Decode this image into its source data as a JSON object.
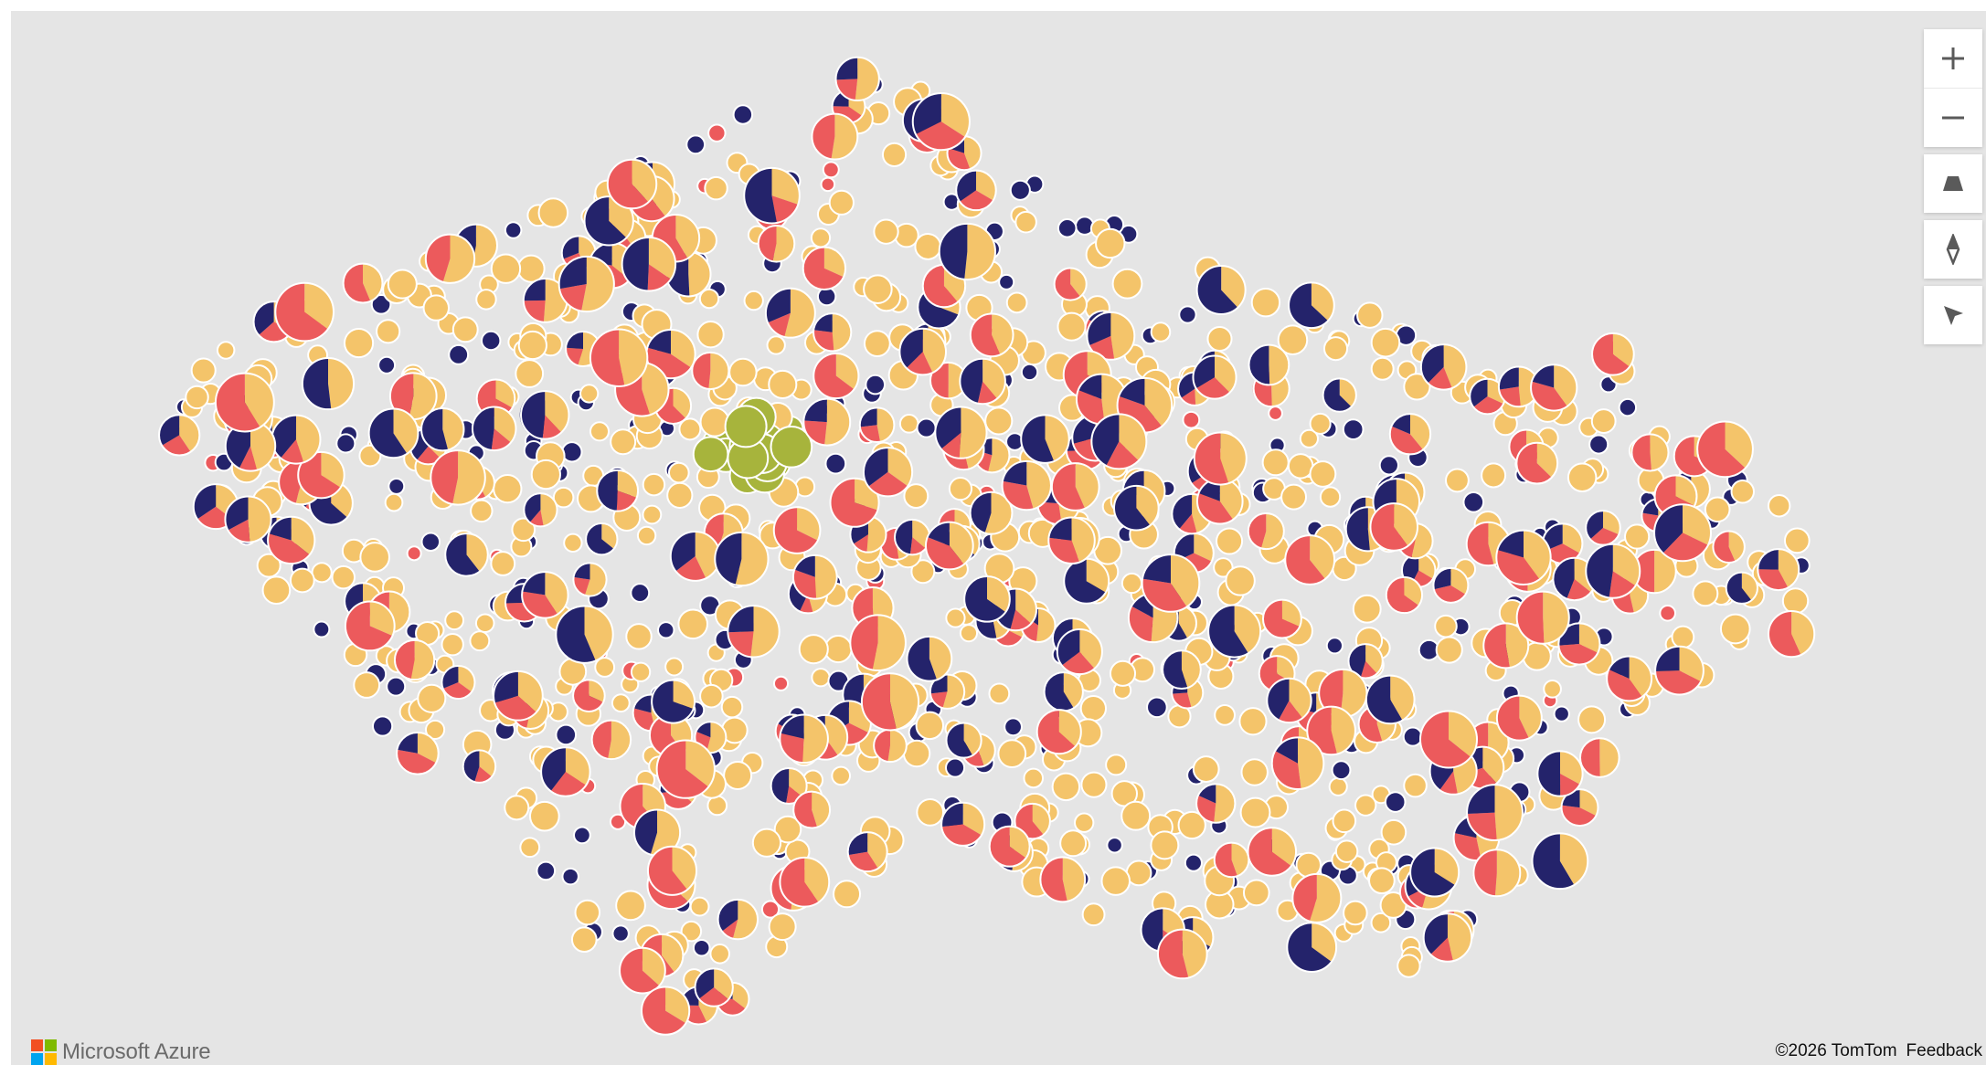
{
  "map": {
    "copyright": "©2026 TomTom",
    "feedback_label": "Feedback",
    "logo_text": "Microsoft Azure",
    "logo_colors": [
      "#f25022",
      "#7fba00",
      "#00a4ef",
      "#ffb900"
    ],
    "background_color": "#e5e5e5"
  },
  "controls": {
    "zoom_in_icon": "plus-icon",
    "zoom_out_icon": "minus-icon",
    "pitch_icon": "trapezoid-icon",
    "compass_icon": "compass-icon",
    "style_icon": "cursor-arrow-icon"
  },
  "palette": {
    "yellow": "#f4c46a",
    "red": "#ec5a5c",
    "navy": "#24236b",
    "green": "#a7b43c",
    "stroke": "#ffffff"
  }
}
